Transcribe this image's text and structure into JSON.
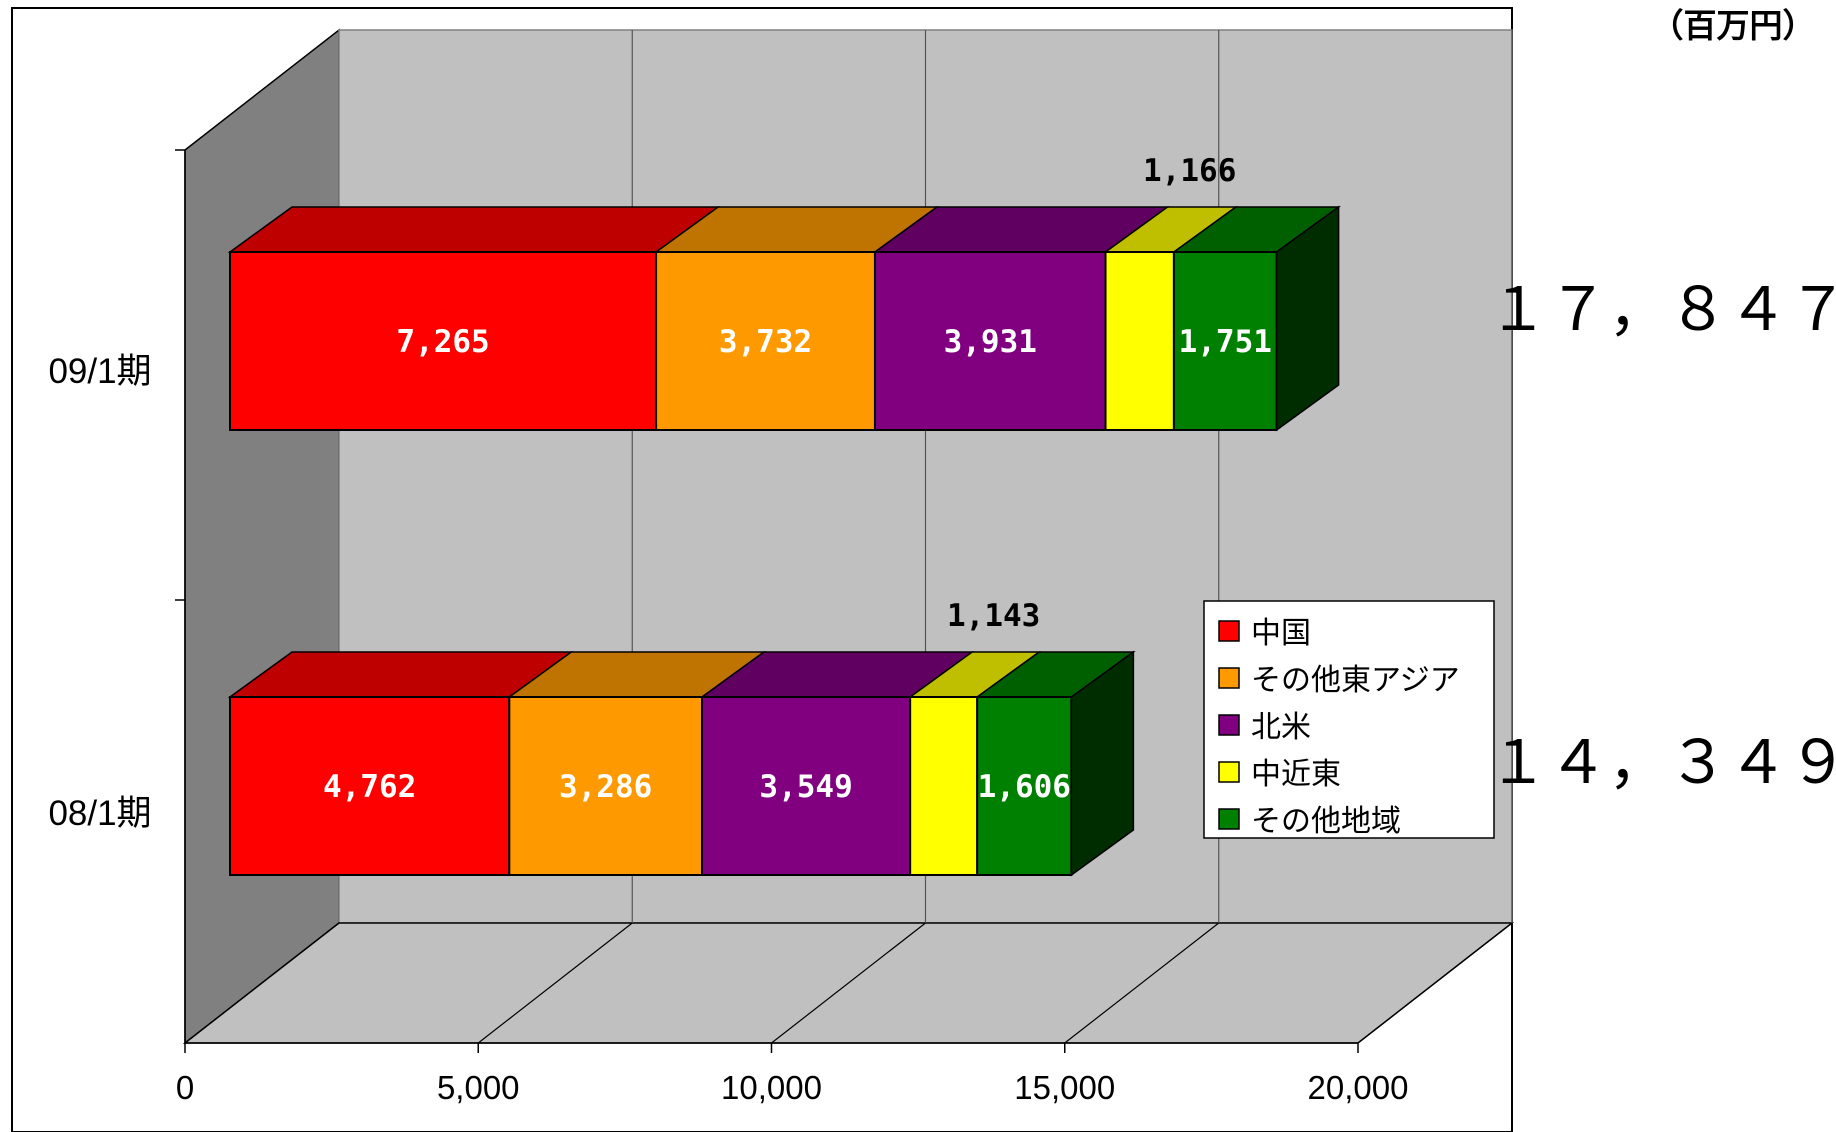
{
  "unit_label": "（百万円）",
  "legend": [
    "中国",
    "その他東アジア",
    "北米",
    "中近東",
    "その他地域"
  ],
  "chart_data": {
    "type": "bar",
    "orientation": "horizontal",
    "stacked": true,
    "three_d": true,
    "categories": [
      "08/1期",
      "09/1期"
    ],
    "series": [
      {
        "name": "中国",
        "color": "#ff0000",
        "values": [
          4762,
          7265
        ]
      },
      {
        "name": "その他東アジア",
        "color": "#ff9900",
        "values": [
          3286,
          3732
        ]
      },
      {
        "name": "北米",
        "color": "#800080",
        "values": [
          3549,
          3931
        ]
      },
      {
        "name": "中近東",
        "color": "#ffff00",
        "values": [
          1143,
          1166
        ]
      },
      {
        "name": "その他地域",
        "color": "#008000",
        "values": [
          1606,
          1751
        ]
      }
    ],
    "data_labels": [
      [
        "4,762",
        "3,286",
        "3,549",
        "1,143",
        "1,606"
      ],
      [
        "7,265",
        "3,732",
        "3,931",
        "1,166",
        "1,751"
      ]
    ],
    "totals": [
      "１４，３４９",
      "１７，８４７"
    ],
    "x_ticks": [
      0,
      5000,
      10000,
      15000,
      20000
    ],
    "x_tick_labels": [
      "0",
      "5,000",
      "10,000",
      "15,000",
      "20,000"
    ],
    "xlim": [
      0,
      20000
    ],
    "grid": true,
    "legend_position": "right"
  }
}
